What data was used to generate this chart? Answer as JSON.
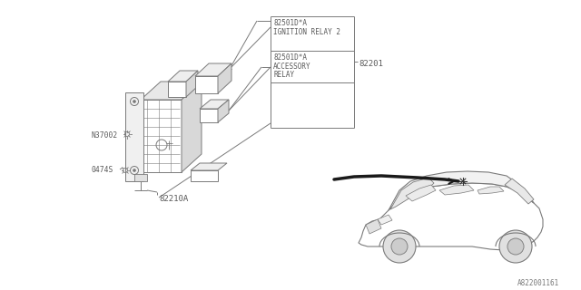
{
  "bg_color": "#ffffff",
  "line_color": "#7a7a7a",
  "text_color": "#5a5a5a",
  "diagram_id": "A822001161",
  "labels": {
    "ignition_relay_num": "82501D*A",
    "ignition_relay_name": "IGNITION RELAY 2",
    "accessory_relay_num": "82501D*A",
    "accessory_relay_name1": "ACCESSORY",
    "accessory_relay_name2": "RELAY",
    "main_box": "82201",
    "junction_box": "82210A",
    "bolt1": "N37002",
    "bolt2": "0474S"
  },
  "font_size": 5.8,
  "mono_font": "monospace"
}
